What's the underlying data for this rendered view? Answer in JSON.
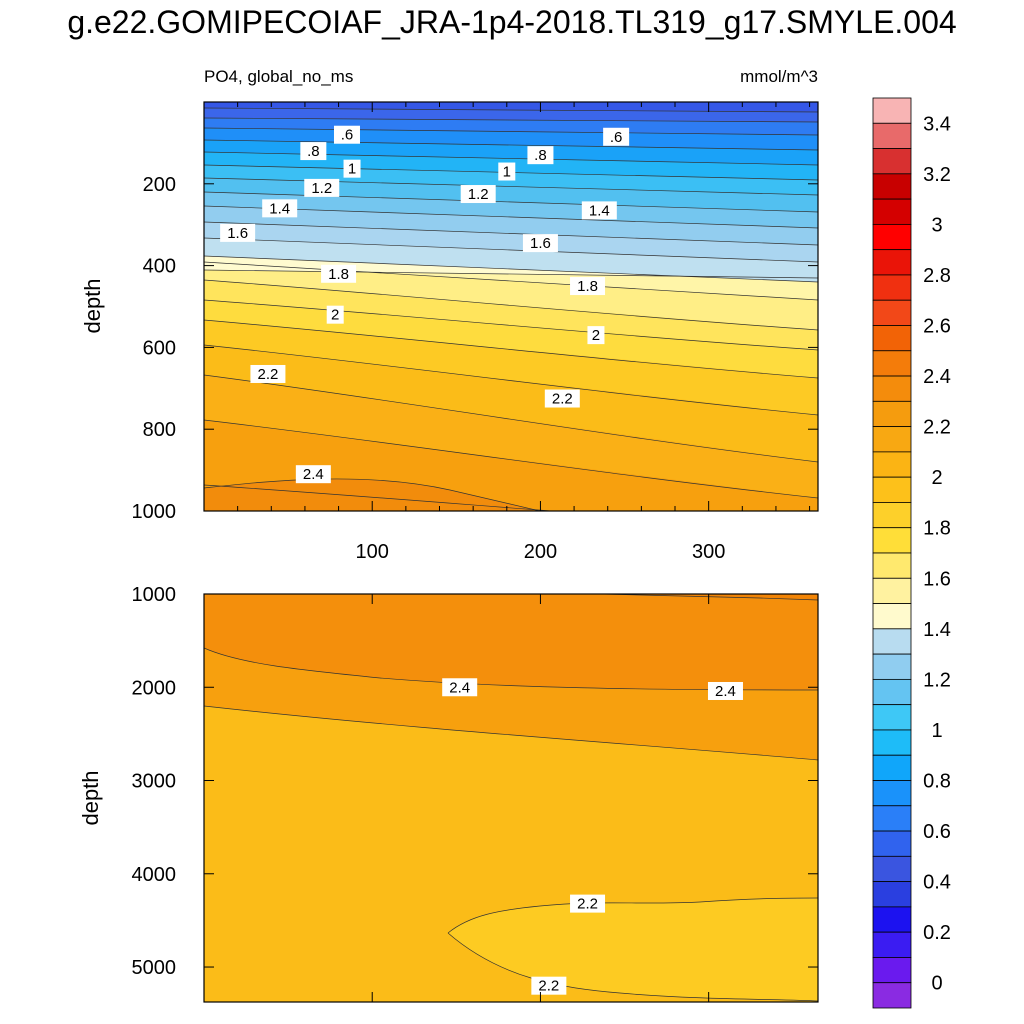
{
  "title": "g.e22.GOMIPECOIAF_JRA-1p4-2018.TL319_g17.SMYLE.004",
  "chart_data": [
    {
      "type": "contour",
      "panel": "upper",
      "title_left": "PO4, global_no_ms",
      "title_right": "mmol/m^3",
      "xlabel": "",
      "ylabel": "depth",
      "xlim": [
        0,
        365
      ],
      "ylim": [
        1000,
        0
      ],
      "x_ticks": [
        100,
        200,
        300
      ],
      "y_ticks": [
        200,
        400,
        600,
        800,
        1000
      ],
      "contour_interval": 0.1,
      "contour_labels": [
        {
          "text": ".6",
          "x": 85,
          "y": 80
        },
        {
          "text": ".6",
          "x": 245,
          "y": 85
        },
        {
          "text": ".8",
          "x": 65,
          "y": 120
        },
        {
          "text": ".8",
          "x": 200,
          "y": 130
        },
        {
          "text": "1",
          "x": 88,
          "y": 163
        },
        {
          "text": "1",
          "x": 180,
          "y": 170
        },
        {
          "text": "1.2",
          "x": 70,
          "y": 210
        },
        {
          "text": "1.2",
          "x": 163,
          "y": 225
        },
        {
          "text": "1.4",
          "x": 45,
          "y": 260
        },
        {
          "text": "1.4",
          "x": 235,
          "y": 265
        },
        {
          "text": "1.6",
          "x": 20,
          "y": 320
        },
        {
          "text": "1.6",
          "x": 200,
          "y": 345
        },
        {
          "text": "1.8",
          "x": 80,
          "y": 420
        },
        {
          "text": "1.8",
          "x": 228,
          "y": 450
        },
        {
          "text": "2",
          "x": 78,
          "y": 520
        },
        {
          "text": "2",
          "x": 233,
          "y": 570
        },
        {
          "text": "2.2",
          "x": 38,
          "y": 665
        },
        {
          "text": "2.2",
          "x": 213,
          "y": 725
        },
        {
          "text": "2.4",
          "x": 65,
          "y": 910
        }
      ]
    },
    {
      "type": "contour",
      "panel": "lower",
      "xlabel": "",
      "ylabel": "depth",
      "xlim": [
        0,
        365
      ],
      "ylim": [
        5375,
        1000
      ],
      "x_ticks": [
        100,
        200,
        300
      ],
      "y_ticks": [
        1000,
        2000,
        3000,
        4000,
        5000
      ],
      "contour_labels": [
        {
          "text": "2.4",
          "x": 152,
          "y": 2000
        },
        {
          "text": "2.4",
          "x": 310,
          "y": 2040
        },
        {
          "text": "2.2",
          "x": 228,
          "y": 4320
        },
        {
          "text": "2.2",
          "x": 205,
          "y": 5200
        }
      ]
    }
  ],
  "colorbar": {
    "labels": [
      "0",
      "0.2",
      "0.4",
      "0.6",
      "0.8",
      "1",
      "1.2",
      "1.4",
      "1.6",
      "1.8",
      "2",
      "2.2",
      "2.4",
      "2.6",
      "2.8",
      "3",
      "3.2",
      "3.4"
    ],
    "colors": [
      "#8a2be2",
      "#6a1aee",
      "#3b1cf2",
      "#1c12f0",
      "#2a3fe0",
      "#3a55e0",
      "#3063ee",
      "#2a7ff8",
      "#1a92fa",
      "#10a6fa",
      "#1ebcf8",
      "#3ec8f6",
      "#64c4f2",
      "#90cdf0",
      "#b8dcf0",
      "#fffacd",
      "#fff2a0",
      "#ffe96e",
      "#ffde38",
      "#fdd02a",
      "#fdc11a",
      "#fbb414",
      "#f8a812",
      "#f59c0e",
      "#f48c0c",
      "#f47c0a",
      "#f26306",
      "#f24818",
      "#f03010",
      "#ea1408",
      "#ff0000",
      "#d40000",
      "#c80000",
      "#d83030",
      "#e86a6a",
      "#f8b4b4"
    ]
  }
}
